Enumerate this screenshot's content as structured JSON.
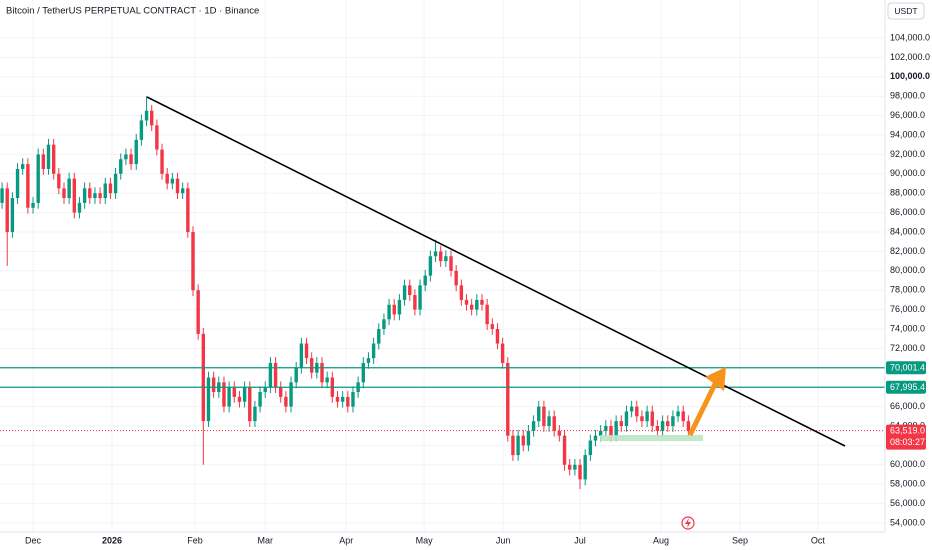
{
  "chart_data": {
    "type": "candlestick",
    "title": "Bitcoin / TetherUS PERPETUAL CONTRACT · 1D · Binance",
    "currency": "USDT",
    "up_color": "#089981",
    "down_color": "#f23645",
    "open": [
      87000,
      88500,
      84000,
      87500,
      90500,
      91000,
      86500,
      87000,
      92000,
      90500,
      93000,
      90000,
      88500,
      87500,
      89500,
      86000,
      87000,
      88500,
      87500,
      88000,
      87500,
      89000,
      88000,
      90000,
      91500,
      92000,
      91000,
      93500,
      95500,
      96500,
      95000,
      92500,
      90000,
      89000,
      89500,
      88000,
      88500,
      84000,
      78000,
      73500,
      64500,
      69000,
      67500,
      68500,
      66000,
      68000,
      67000,
      66500,
      68000,
      64500,
      66000,
      67500,
      68000,
      70500,
      68000,
      67000,
      66000,
      68500,
      70000,
      72500,
      71000,
      69500,
      70500,
      68500,
      69000,
      67000,
      66500,
      67000,
      66000,
      67500,
      68500,
      70500,
      71000,
      72500,
      74000,
      75000,
      76500,
      75500,
      77000,
      78500,
      77500,
      76000,
      78500,
      79500,
      81500,
      82000,
      81000,
      81500,
      80000,
      78500,
      77000,
      76500,
      76000,
      77000,
      76500,
      74500,
      74000,
      72500,
      70500,
      63000,
      61000,
      63000,
      62000,
      63500,
      64500,
      66000,
      64000,
      65000,
      63500,
      63000,
      60000,
      59500,
      60000,
      58500,
      61000,
      62500,
      63000,
      63500,
      64000,
      63000,
      64500,
      64000,
      65500,
      66000,
      65000,
      64500,
      65500,
      64000,
      63500,
      64500,
      64000,
      65000,
      65500,
      64500
    ],
    "high": [
      89100,
      89100,
      88100,
      91100,
      91600,
      91600,
      87600,
      92600,
      92600,
      93600,
      93600,
      90600,
      89100,
      90100,
      90100,
      87600,
      89100,
      89100,
      88600,
      88600,
      89600,
      89600,
      90600,
      92100,
      92600,
      92600,
      94100,
      96100,
      98000,
      97100,
      95600,
      93100,
      90600,
      90100,
      90100,
      89100,
      89100,
      84600,
      78600,
      74100,
      69600,
      69600,
      69100,
      69100,
      68600,
      68600,
      67600,
      68600,
      68600,
      66600,
      68100,
      68600,
      71100,
      71100,
      68600,
      67600,
      69100,
      70600,
      73100,
      73100,
      71600,
      71100,
      71100,
      69600,
      69600,
      67600,
      67600,
      67600,
      68100,
      69100,
      71100,
      71600,
      73100,
      74600,
      75600,
      77100,
      77100,
      77600,
      79100,
      79100,
      78100,
      79100,
      80100,
      82100,
      83200,
      82600,
      82100,
      82100,
      80600,
      79100,
      77600,
      77100,
      77600,
      77600,
      77100,
      75100,
      74600,
      73100,
      71100,
      63600,
      63600,
      63600,
      64100,
      65100,
      66600,
      66600,
      65600,
      65600,
      64100,
      63600,
      60600,
      60600,
      60600,
      61600,
      63100,
      63600,
      64100,
      64600,
      64600,
      65100,
      65100,
      66100,
      66600,
      66600,
      65600,
      66100,
      66100,
      64600,
      65100,
      65100,
      65600,
      66100,
      66100,
      65100
    ],
    "low": [
      86400,
      80500,
      83400,
      86900,
      89900,
      85900,
      85900,
      86400,
      89900,
      89900,
      89400,
      87900,
      86900,
      86900,
      85400,
      85400,
      86400,
      86900,
      86900,
      86900,
      86900,
      87400,
      87400,
      89400,
      90900,
      90400,
      90400,
      92900,
      94900,
      94400,
      91900,
      89400,
      88400,
      88400,
      87400,
      87400,
      83400,
      77400,
      72900,
      60000,
      63900,
      66900,
      66900,
      65400,
      65400,
      66400,
      65900,
      65900,
      63900,
      63900,
      65400,
      66900,
      67400,
      67400,
      66400,
      65400,
      65400,
      67900,
      69400,
      70400,
      68900,
      68900,
      67900,
      67900,
      66400,
      65900,
      65900,
      65400,
      65400,
      66900,
      67900,
      69900,
      70400,
      71900,
      73400,
      74400,
      74900,
      74900,
      76400,
      76900,
      75400,
      75400,
      77900,
      78900,
      80900,
      80400,
      80400,
      79400,
      77900,
      76400,
      75900,
      75400,
      75400,
      75900,
      73900,
      73400,
      71900,
      69900,
      62400,
      60400,
      60400,
      61400,
      61400,
      62900,
      63900,
      63400,
      63400,
      62900,
      62400,
      59400,
      58900,
      58900,
      57500,
      57900,
      60400,
      61900,
      62400,
      62900,
      62400,
      62400,
      63400,
      63400,
      64900,
      64400,
      63900,
      63900,
      63400,
      62900,
      62900,
      63400,
      63400,
      64400,
      63900,
      62900
    ],
    "close": [
      88500,
      84000,
      87500,
      90500,
      91000,
      86500,
      87000,
      92000,
      90500,
      93000,
      90000,
      88500,
      87500,
      89500,
      86000,
      87000,
      88500,
      87500,
      88000,
      87500,
      89000,
      88000,
      90000,
      91500,
      92000,
      91000,
      93500,
      95500,
      96500,
      95000,
      92500,
      90000,
      89000,
      89500,
      88000,
      88500,
      84000,
      78000,
      73500,
      64500,
      69000,
      67500,
      68500,
      66000,
      68000,
      67000,
      66500,
      68000,
      64500,
      66000,
      67500,
      68000,
      70500,
      68000,
      67000,
      66000,
      68500,
      70000,
      72500,
      71000,
      69500,
      70500,
      68500,
      69000,
      67000,
      66500,
      67000,
      66000,
      67500,
      68500,
      70500,
      71000,
      72500,
      74000,
      75000,
      76500,
      75500,
      77000,
      78500,
      77500,
      76000,
      78500,
      79500,
      81500,
      82000,
      81000,
      81500,
      80000,
      78500,
      77000,
      76500,
      76000,
      77000,
      76500,
      74500,
      74000,
      72500,
      70500,
      63000,
      61000,
      63000,
      62000,
      63500,
      64500,
      66000,
      64000,
      65000,
      63500,
      63000,
      60000,
      59500,
      60000,
      58500,
      61000,
      62500,
      63000,
      63500,
      64000,
      63000,
      64500,
      64000,
      65500,
      66000,
      65000,
      64500,
      65500,
      64000,
      63500,
      64500,
      64000,
      65000,
      65500,
      64500,
      63519
    ],
    "xlim": [
      -0.4,
      171.1
    ],
    "xticks": [
      {
        "value": 6.0,
        "label": "Dec"
      },
      {
        "value": 21.3,
        "label": "2026"
      },
      {
        "value": 37.4,
        "label": "Feb"
      },
      {
        "value": 51.0,
        "label": "Mar"
      },
      {
        "value": 66.7,
        "label": "Apr"
      },
      {
        "value": 81.8,
        "label": "May"
      },
      {
        "value": 97.1,
        "label": "Jun"
      },
      {
        "value": 112.0,
        "label": "Jul"
      },
      {
        "value": 127.7,
        "label": "Aug"
      },
      {
        "value": 143.0,
        "label": "Sep"
      },
      {
        "value": 158.1,
        "label": "Oct"
      }
    ],
    "ylim": [
      53072,
      107918
    ],
    "yticks": [
      {
        "value": 54000,
        "label": "54,000.0"
      },
      {
        "value": 56000,
        "label": "56,000.0"
      },
      {
        "value": 58000,
        "label": "58,000.0"
      },
      {
        "value": 60000,
        "label": "60,000.0"
      },
      {
        "value": 62000,
        "label": "62,000.0"
      },
      {
        "value": 64000,
        "label": "64,000.0"
      },
      {
        "value": 66000,
        "label": "66,000.0"
      },
      {
        "value": 68000,
        "label": "68,000.0"
      },
      {
        "value": 70000,
        "label": "70,000.0"
      },
      {
        "value": 72000,
        "label": "72,000.0"
      },
      {
        "value": 74000,
        "label": "74,000.0"
      },
      {
        "value": 76000,
        "label": "76,000.0"
      },
      {
        "value": 78000,
        "label": "78,000.0"
      },
      {
        "value": 80000,
        "label": "80,000.0"
      },
      {
        "value": 82000,
        "label": "82,000.0"
      },
      {
        "value": 84000,
        "label": "84,000.0"
      },
      {
        "value": 86000,
        "label": "86,000.0"
      },
      {
        "value": 88000,
        "label": "88,000.0"
      },
      {
        "value": 90000,
        "label": "90,000.0"
      },
      {
        "value": 92000,
        "label": "92,000.0"
      },
      {
        "value": 94000,
        "label": "94,000.0"
      },
      {
        "value": 96000,
        "label": "96,000.0"
      },
      {
        "value": 98000,
        "label": "98,000.0"
      },
      {
        "value": 100000,
        "label": "100,000.0"
      },
      {
        "value": 102000,
        "label": "102,000.0"
      },
      {
        "value": 104000,
        "label": "104,000.0"
      }
    ],
    "grid": true,
    "levels": [
      {
        "value": 70001.4,
        "label": "70,001.4",
        "color": "#089981"
      },
      {
        "value": 67995.4,
        "label": "67,995.4",
        "color": "#089981"
      }
    ],
    "last_price": {
      "value": 63519,
      "label": "63,519.0",
      "countdown": "08:03:27",
      "color": "#f23645"
    }
  }
}
